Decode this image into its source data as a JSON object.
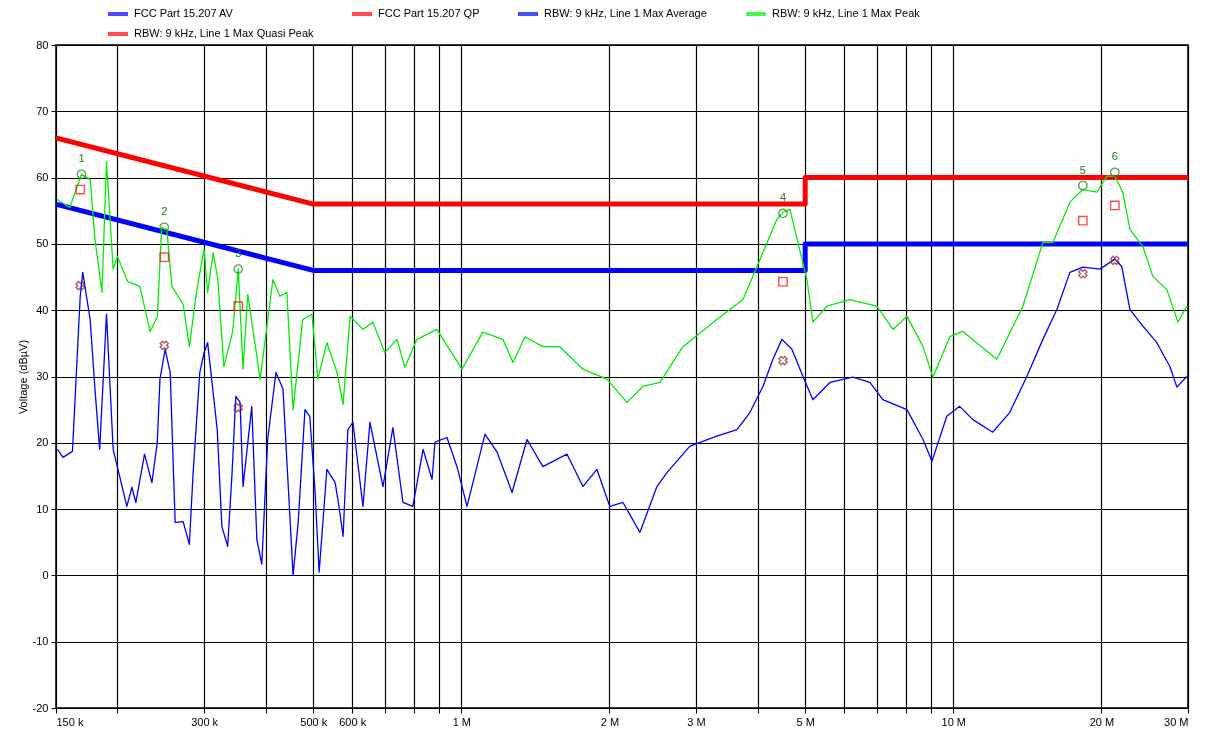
{
  "chart_data": {
    "type": "line",
    "ylabel": "Voltage (dBµV)",
    "xlim": [
      150000,
      30000000
    ],
    "ylim": [
      -20,
      80
    ],
    "xticks": [
      {
        "value": 150000,
        "label": "150 k"
      },
      {
        "value": 200000,
        "label": null
      },
      {
        "value": 300000,
        "label": "300 k"
      },
      {
        "value": 400000,
        "label": null
      },
      {
        "value": 500000,
        "label": "500 k"
      },
      {
        "value": 600000,
        "label": "600 k"
      },
      {
        "value": 700000,
        "label": null
      },
      {
        "value": 800000,
        "label": null
      },
      {
        "value": 900000,
        "label": null
      },
      {
        "value": 1000000,
        "label": "1 M"
      },
      {
        "value": 2000000,
        "label": "2 M"
      },
      {
        "value": 3000000,
        "label": "3 M"
      },
      {
        "value": 4000000,
        "label": null
      },
      {
        "value": 5000000,
        "label": "5 M"
      },
      {
        "value": 6000000,
        "label": null
      },
      {
        "value": 7000000,
        "label": null
      },
      {
        "value": 8000000,
        "label": null
      },
      {
        "value": 9000000,
        "label": null
      },
      {
        "value": 10000000,
        "label": "10 M"
      },
      {
        "value": 20000000,
        "label": "20 M"
      },
      {
        "value": 30000000,
        "label": "30 M"
      }
    ],
    "yticks": [
      -20,
      -10,
      0,
      10,
      20,
      30,
      40,
      50,
      60,
      70,
      80
    ],
    "log": "x",
    "grid": true,
    "legend": "top",
    "series": [
      {
        "name": "FCC Part 15.207 AV",
        "color": "#0000ff",
        "x": [
          150000,
          500000,
          5000000,
          5000000,
          30000000
        ],
        "values": [
          56,
          46,
          46,
          50,
          50
        ]
      },
      {
        "name": "FCC Part 15.207 QP",
        "color": "#ff0000",
        "x": [
          150000,
          500000,
          5000000,
          5000000,
          30000000
        ],
        "values": [
          66,
          56,
          56,
          60,
          60
        ]
      },
      {
        "name": "RBW: 9 kHz, Line 1 Max Average",
        "color": "#0000ff",
        "x": [
          151000,
          155000,
          162000,
          168000,
          170000,
          176000,
          180000,
          184000,
          190000,
          196000,
          209000,
          214000,
          218000,
          227000,
          235000,
          241000,
          244000,
          250000,
          256000,
          262000,
          272000,
          280000,
          285000,
          294000,
          300000,
          305000,
          319000,
          326000,
          335000,
          342000,
          348000,
          355000,
          360000,
          375000,
          384000,
          393000,
          404000,
          420000,
          434000,
          455000,
          466000,
          481000,
          492000,
          504000,
          514000,
          533000,
          554000,
          564000,
          575000,
          588000,
          602000,
          631000,
          652000,
          693000,
          726000,
          761000,
          797000,
          836000,
          872000,
          884000,
          935000,
          980000,
          1027000,
          1117000,
          1182000,
          1268000,
          1360000,
          1465000,
          1639000,
          1767000,
          1886000,
          2004000,
          2131000,
          2307000,
          2498000,
          2618000,
          2915000,
          3307000,
          3633000,
          3862000,
          4103000,
          4299000,
          4484000,
          4699000,
          4948000,
          5184000,
          5613000,
          6251000,
          6770000,
          7190000,
          8050000,
          8680000,
          9050000,
          9700000,
          10300000,
          10960000,
          12030000,
          13030000,
          14110000,
          15210000,
          16240000,
          17260000,
          18340000,
          19860000,
          21300000,
          22000000,
          22860000,
          24290000,
          25930000,
          27560000,
          28480000,
          29840000
        ],
        "values": [
          19.0,
          17.8,
          18.7,
          42.1,
          45.7,
          38.6,
          28.1,
          19.0,
          39.4,
          19.0,
          10.4,
          13.3,
          11.0,
          18.3,
          14.0,
          20.1,
          29.6,
          34.1,
          30.6,
          8.0,
          8.1,
          4.7,
          15.5,
          30.6,
          33.6,
          35.1,
          22.0,
          7.4,
          4.4,
          15.5,
          27.0,
          26.1,
          13.4,
          25.5,
          5.4,
          1.7,
          20.5,
          30.6,
          28.1,
          0.0,
          8.0,
          25.0,
          24.0,
          13.0,
          0.5,
          16.0,
          14.0,
          10.4,
          5.9,
          22.0,
          23.1,
          10.4,
          23.1,
          13.4,
          22.3,
          11.0,
          10.4,
          19.0,
          14.5,
          20.1,
          20.8,
          16.4,
          10.4,
          21.3,
          18.6,
          12.5,
          20.5,
          16.4,
          18.3,
          13.4,
          16.0,
          10.4,
          11.0,
          6.5,
          13.4,
          15.5,
          19.5,
          21.0,
          22.0,
          24.6,
          28.5,
          32.6,
          35.6,
          34.1,
          30.0,
          26.5,
          29.1,
          29.9,
          29.1,
          26.5,
          25.0,
          20.5,
          17.2,
          24.0,
          25.5,
          23.5,
          21.6,
          24.6,
          30.0,
          35.6,
          40.1,
          45.7,
          46.5,
          46.2,
          47.7,
          46.6,
          40.1,
          37.6,
          35.1,
          31.5,
          28.4,
          30.0
        ]
      },
      {
        "name": "RBW: 9 kHz, Line 1 Max Peak",
        "color": "#00ee00",
        "x": [
          151000,
          160000,
          169000,
          176000,
          180000,
          186000,
          190000,
          196000,
          200000,
          210000,
          222000,
          233000,
          241000,
          246000,
          252000,
          258000,
          272000,
          280000,
          290000,
          300000,
          305000,
          313000,
          320000,
          329000,
          343000,
          352000,
          360000,
          368000,
          390000,
          414000,
          428000,
          442000,
          455000,
          476000,
          497000,
          511000,
          533000,
          559000,
          575000,
          594000,
          631000,
          661000,
          699000,
          740000,
          768000,
          812000,
          892000,
          1003000,
          1106000,
          1215000,
          1274000,
          1347000,
          1465000,
          1586000,
          1767000,
          1977000,
          2171000,
          2340000,
          2534000,
          2821000,
          3307000,
          3737000,
          3991000,
          4381000,
          4506000,
          4656000,
          4834000,
          5041000,
          5184000,
          5535000,
          6164000,
          6990000,
          7540000,
          8050000,
          8680000,
          9090000,
          9840000,
          10460000,
          12260000,
          13850000,
          15210000,
          15940000,
          17260000,
          18340000,
          19590000,
          20520000,
          21300000,
          22110000,
          22860000,
          24290000,
          25450000,
          27180000,
          28610000,
          29840000
        ],
        "values": [
          56.7,
          55.5,
          60.5,
          59.7,
          50.7,
          42.7,
          62.4,
          46.2,
          48.1,
          44.3,
          43.6,
          36.8,
          39.0,
          52.5,
          52.2,
          43.6,
          40.9,
          34.5,
          43.1,
          49.2,
          42.7,
          48.7,
          44.6,
          31.5,
          36.8,
          46.2,
          31.1,
          42.4,
          29.6,
          44.6,
          42.1,
          42.7,
          25.0,
          38.6,
          39.4,
          29.6,
          35.1,
          30.6,
          25.8,
          39.1,
          37.1,
          38.2,
          33.6,
          35.6,
          31.4,
          35.6,
          37.1,
          31.1,
          36.7,
          35.6,
          32.1,
          36.0,
          34.5,
          34.5,
          31.1,
          29.6,
          26.1,
          28.5,
          29.1,
          34.5,
          38.6,
          41.6,
          46.6,
          53.7,
          54.8,
          55.2,
          50.2,
          44.6,
          38.2,
          40.6,
          41.6,
          40.6,
          37.1,
          39.1,
          34.5,
          29.9,
          36.0,
          36.8,
          32.6,
          40.6,
          50.2,
          50.2,
          56.3,
          58.2,
          57.8,
          60.2,
          60.2,
          57.8,
          52.2,
          49.6,
          45.1,
          43.1,
          38.2,
          40.6
        ]
      },
      {
        "name": "RBW: 9 kHz, Line 1 Max Quasi Peak",
        "type": "scatter",
        "marker": "square",
        "color": "#ff0000",
        "x": [
          168000,
          249000,
          352000,
          4506000,
          18340000,
          21300000
        ],
        "values": [
          58.2,
          48.0,
          40.6,
          44.3,
          53.5,
          55.8
        ]
      },
      {
        "type": "scatter",
        "marker": "cross",
        "color": "#8b1a1a",
        "x": [
          168000,
          249000,
          352000,
          4506000,
          18340000,
          21300000
        ],
        "values": [
          43.7,
          34.7,
          25.3,
          32.4,
          45.5,
          47.5
        ]
      },
      {
        "type": "scatter",
        "marker": "circle",
        "color": "#1a7a1a",
        "x": [
          169000,
          249000,
          352000,
          4506000,
          18340000,
          21300000
        ],
        "values": [
          60.5,
          52.5,
          46.2,
          54.6,
          58.8,
          60.8
        ]
      }
    ],
    "annotations": [
      {
        "text": "1",
        "x": 169000,
        "y": 60.5
      },
      {
        "text": "2",
        "x": 249000,
        "y": 52.5
      },
      {
        "text": "3",
        "x": 352000,
        "y": 46.2
      },
      {
        "text": "4",
        "x": 4506000,
        "y": 54.6
      },
      {
        "text": "5",
        "x": 18340000,
        "y": 58.8
      },
      {
        "text": "6",
        "x": 21300000,
        "y": 60.8
      }
    ]
  }
}
